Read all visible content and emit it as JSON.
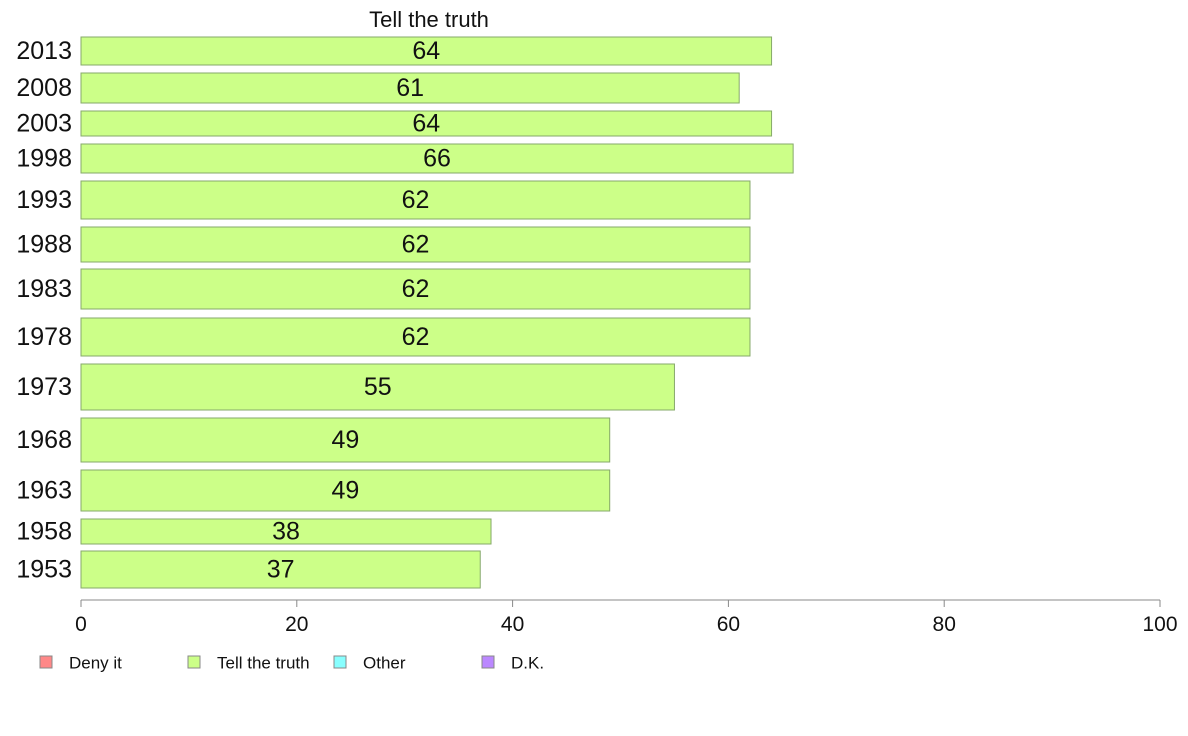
{
  "chart_data": {
    "type": "bar",
    "orientation": "horizontal",
    "title": "Tell the truth",
    "categories": [
      "2013",
      "2008",
      "2003",
      "1998",
      "1993",
      "1988",
      "1983",
      "1978",
      "1973",
      "1968",
      "1963",
      "1958",
      "1953"
    ],
    "series": [
      {
        "name": "Tell the truth",
        "values": [
          64,
          61,
          64,
          66,
          62,
          62,
          62,
          62,
          55,
          49,
          49,
          38,
          37
        ]
      }
    ],
    "xlim": [
      0,
      100
    ],
    "xticks": [
      0,
      20,
      40,
      60,
      80,
      100
    ],
    "grid": false,
    "legend_position": "bottom-left",
    "legend": [
      {
        "label": "Deny it",
        "color": "#ff8888"
      },
      {
        "label": "Tell the truth",
        "color": "#ccff88"
      },
      {
        "label": "Other",
        "color": "#88ffff"
      },
      {
        "label": "D.K.",
        "color": "#bb88ff"
      }
    ]
  }
}
